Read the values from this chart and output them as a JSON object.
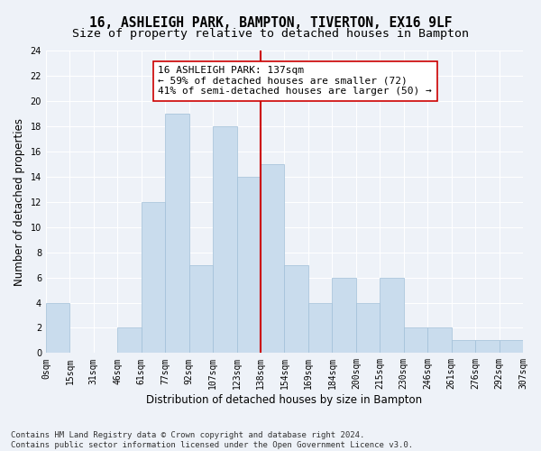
{
  "title": "16, ASHLEIGH PARK, BAMPTON, TIVERTON, EX16 9LF",
  "subtitle": "Size of property relative to detached houses in Bampton",
  "xlabel": "Distribution of detached houses by size in Bampton",
  "ylabel": "Number of detached properties",
  "bar_values": [
    4,
    0,
    0,
    2,
    12,
    19,
    7,
    18,
    14,
    15,
    7,
    4,
    6,
    4,
    6,
    2,
    2,
    1,
    1,
    1
  ],
  "bin_labels": [
    "0sqm",
    "15sqm",
    "31sqm",
    "46sqm",
    "61sqm",
    "77sqm",
    "92sqm",
    "107sqm",
    "123sqm",
    "138sqm",
    "154sqm",
    "169sqm",
    "184sqm",
    "200sqm",
    "215sqm",
    "230sqm",
    "246sqm",
    "261sqm",
    "276sqm",
    "292sqm",
    "307sqm"
  ],
  "bar_color": "#c9dced",
  "bar_edge_color": "#a0bfd8",
  "vline_color": "#cc0000",
  "annotation_text": "16 ASHLEIGH PARK: 137sqm\n← 59% of detached houses are smaller (72)\n41% of semi-detached houses are larger (50) →",
  "annotation_box_color": "#ffffff",
  "annotation_box_edge": "#cc0000",
  "ylim": [
    0,
    24
  ],
  "yticks": [
    0,
    2,
    4,
    6,
    8,
    10,
    12,
    14,
    16,
    18,
    20,
    22,
    24
  ],
  "footer": "Contains HM Land Registry data © Crown copyright and database right 2024.\nContains public sector information licensed under the Open Government Licence v3.0.",
  "bg_color": "#eef2f8",
  "grid_color": "#ffffff",
  "title_fontsize": 10.5,
  "subtitle_fontsize": 9.5,
  "axis_label_fontsize": 8.5,
  "tick_fontsize": 7,
  "annotation_fontsize": 8,
  "footer_fontsize": 6.5
}
